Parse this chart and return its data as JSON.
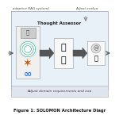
{
  "title": "Figure 1: SOLOMON Architecture Diagr",
  "bg_color": "#ffffff",
  "box_border": "#aaaaaa",
  "text_color": "#222222",
  "caption_color": "#444444",
  "top_label": "adaptive RAG system)",
  "top_right_label": "Adjust evalua",
  "bottom_label": "Adjust domain requirements and exa",
  "thought_assessor_label": "Thought Assessor",
  "fig_width": 1.5,
  "fig_height": 1.5,
  "dpi": 100
}
